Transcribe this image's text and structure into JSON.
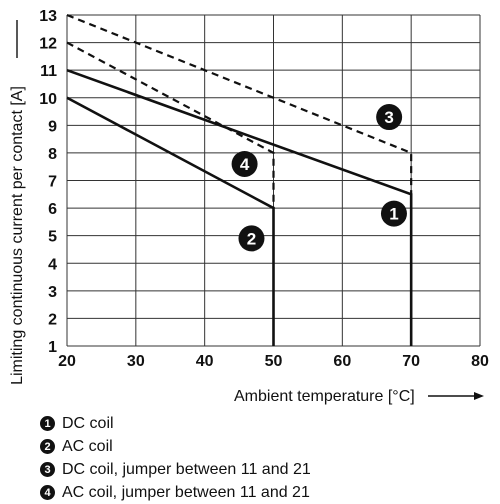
{
  "chart_data": {
    "type": "line",
    "xlabel": "Ambient temperature [°C]",
    "ylabel": "Limiting continuous current per contact [A]",
    "xlim": [
      20,
      80
    ],
    "ylim": [
      1,
      13
    ],
    "x_ticks": [
      20,
      30,
      40,
      50,
      60,
      70,
      80
    ],
    "y_ticks": [
      1,
      2,
      3,
      4,
      5,
      6,
      7,
      8,
      9,
      10,
      11,
      12,
      13
    ],
    "grid": true,
    "series": [
      {
        "marker": "1",
        "name": "DC coil",
        "style": "solid",
        "x": [
          20,
          70,
          70
        ],
        "y": [
          11,
          6.5,
          1
        ]
      },
      {
        "marker": "2",
        "name": "AC coil",
        "style": "solid",
        "x": [
          20,
          50,
          50
        ],
        "y": [
          10,
          6,
          1
        ]
      },
      {
        "marker": "3",
        "name": "DC coil, jumper between 11 and 21",
        "style": "dashed",
        "x": [
          20,
          70,
          70
        ],
        "y": [
          13,
          8,
          6.5
        ]
      },
      {
        "marker": "4",
        "name": "AC coil, jumper between 11 and 21",
        "style": "dashed",
        "x": [
          20,
          50,
          50
        ],
        "y": [
          12,
          8,
          6
        ]
      }
    ],
    "marker_positions": [
      {
        "label": "1",
        "x": 67.5,
        "y": 5.8
      },
      {
        "label": "2",
        "x": 46.8,
        "y": 4.9
      },
      {
        "label": "3",
        "x": 66.8,
        "y": 9.3
      },
      {
        "label": "4",
        "x": 45.8,
        "y": 7.6
      }
    ]
  }
}
